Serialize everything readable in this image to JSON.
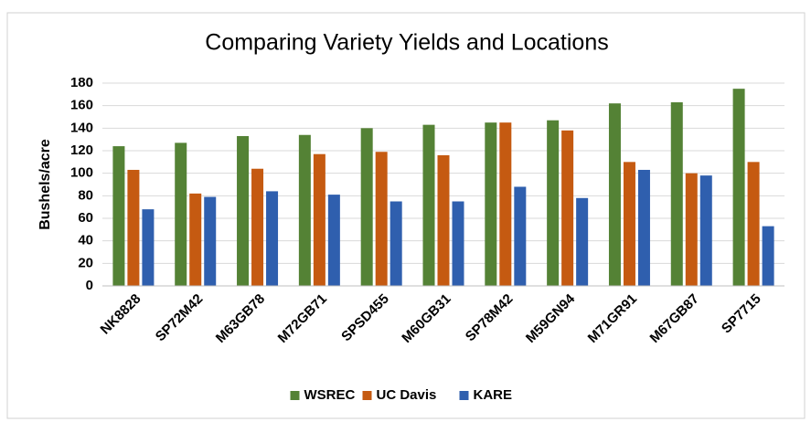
{
  "chart_data": {
    "type": "bar",
    "title": "Comparing Variety Yields and Locations",
    "y_label": "Bushels/acre",
    "categories": [
      "NK8828",
      "SP72M42",
      "M63GB78",
      "M72GB71",
      "SPSD455",
      "M60GB31",
      "SP78M42",
      "M59GN94",
      "M71GR91",
      "M67GB87",
      "SP7715"
    ],
    "series": [
      {
        "name": "WSREC",
        "color": "#548235",
        "values": [
          124,
          127,
          133,
          134,
          140,
          143,
          145,
          147,
          162,
          163,
          175
        ]
      },
      {
        "name": "UC Davis",
        "color": "#c55a11",
        "values": [
          103,
          82,
          104,
          117,
          119,
          116,
          145,
          138,
          110,
          100,
          110
        ]
      },
      {
        "name": "KARE",
        "color": "#2f5fae",
        "values": [
          68,
          79,
          84,
          81,
          75,
          75,
          88,
          78,
          103,
          98,
          53
        ]
      }
    ],
    "ylim": [
      0,
      180
    ],
    "yticks": [
      0,
      20,
      40,
      60,
      80,
      100,
      120,
      140,
      160,
      180
    ],
    "grid": true,
    "legend": "bottom"
  }
}
